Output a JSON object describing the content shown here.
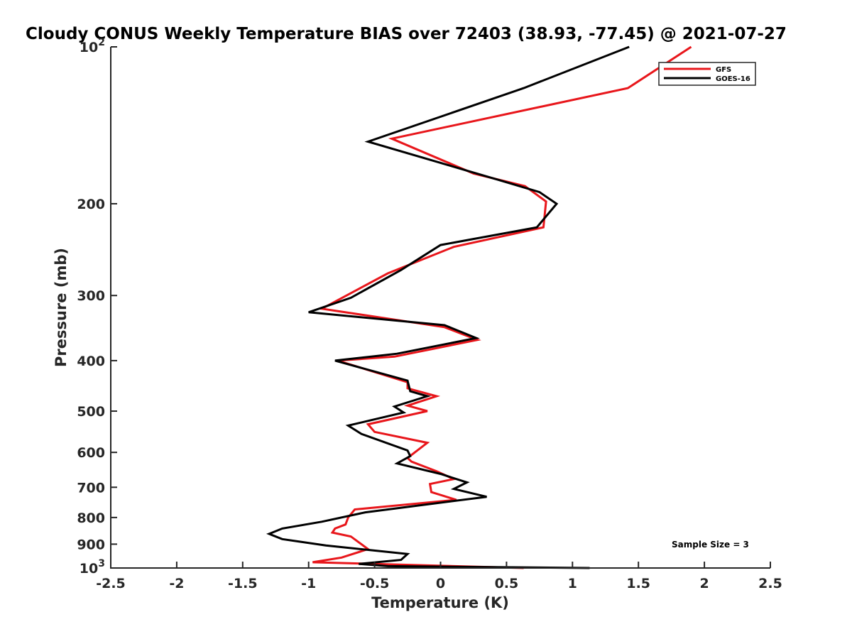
{
  "chart_data": {
    "type": "line",
    "title": "Cloudy CONUS Weekly Temperature BIAS over 72403 (38.93, -77.45) @ 2021-07-27",
    "xlabel": "Temperature (K)",
    "ylabel": "Pressure (mb)",
    "xlim": [
      -2.5,
      2.5
    ],
    "ylim": [
      100,
      1000
    ],
    "y_scale": "log",
    "y_reversed": true,
    "grid": false,
    "legend_position": "top-right",
    "x_ticks": [
      "-2.5",
      "-2",
      "-1.5",
      "-1",
      "-0.5",
      "0",
      "0.5",
      "1",
      "1.5",
      "2",
      "2.5"
    ],
    "y_ticks": [
      {
        "value": 100,
        "label": "10",
        "sup": "2"
      },
      {
        "value": 200,
        "label": "200",
        "sup": ""
      },
      {
        "value": 300,
        "label": "300",
        "sup": ""
      },
      {
        "value": 400,
        "label": "400",
        "sup": ""
      },
      {
        "value": 500,
        "label": "500",
        "sup": ""
      },
      {
        "value": 600,
        "label": "600",
        "sup": ""
      },
      {
        "value": 700,
        "label": "700",
        "sup": ""
      },
      {
        "value": 800,
        "label": "800",
        "sup": ""
      },
      {
        "value": 900,
        "label": "900",
        "sup": ""
      },
      {
        "value": 1000,
        "label": "10",
        "sup": "3"
      }
    ],
    "annotation": "Sample Size = 3",
    "series": [
      {
        "name": "GFS",
        "color": "#e8161b",
        "points": [
          [
            1.9,
            100
          ],
          [
            1.42,
            120
          ],
          [
            -0.37,
            150
          ],
          [
            0.25,
            175
          ],
          [
            0.64,
            185
          ],
          [
            0.8,
            198
          ],
          [
            0.78,
            222
          ],
          [
            0.1,
            242
          ],
          [
            -0.4,
            272
          ],
          [
            -0.9,
            318
          ],
          [
            0.03,
            345
          ],
          [
            0.28,
            365
          ],
          [
            -0.35,
            393
          ],
          [
            -0.78,
            400
          ],
          [
            -0.25,
            440
          ],
          [
            -0.25,
            452
          ],
          [
            -0.03,
            468
          ],
          [
            -0.25,
            488
          ],
          [
            -0.1,
            500
          ],
          [
            -0.55,
            530
          ],
          [
            -0.5,
            548
          ],
          [
            -0.1,
            575
          ],
          [
            -0.25,
            615
          ],
          [
            -0.22,
            625
          ],
          [
            -0.03,
            652
          ],
          [
            0.1,
            675
          ],
          [
            -0.08,
            690
          ],
          [
            -0.07,
            715
          ],
          [
            0.12,
            740
          ],
          [
            -0.65,
            772
          ],
          [
            -0.7,
            800
          ],
          [
            -0.72,
            825
          ],
          [
            -0.8,
            840
          ],
          [
            -0.82,
            855
          ],
          [
            -0.68,
            870
          ],
          [
            -0.55,
            920
          ],
          [
            -0.75,
            955
          ],
          [
            -0.97,
            975
          ],
          [
            0.63,
            1000
          ]
        ]
      },
      {
        "name": "GOES-16",
        "color": "#000000",
        "points": [
          [
            1.43,
            100
          ],
          [
            0.63,
            120
          ],
          [
            -0.55,
            152
          ],
          [
            0.44,
            180
          ],
          [
            0.75,
            190
          ],
          [
            0.88,
            200
          ],
          [
            0.73,
            222
          ],
          [
            0.0,
            240
          ],
          [
            -0.3,
            268
          ],
          [
            -0.68,
            303
          ],
          [
            -1.0,
            323
          ],
          [
            0.03,
            342
          ],
          [
            0.27,
            362
          ],
          [
            -0.33,
            388
          ],
          [
            -0.8,
            400
          ],
          [
            -0.25,
            437
          ],
          [
            -0.23,
            458
          ],
          [
            -0.1,
            468
          ],
          [
            -0.35,
            490
          ],
          [
            -0.28,
            503
          ],
          [
            -0.7,
            533
          ],
          [
            -0.6,
            553
          ],
          [
            -0.25,
            595
          ],
          [
            -0.23,
            610
          ],
          [
            -0.33,
            630
          ],
          [
            0.0,
            660
          ],
          [
            0.2,
            685
          ],
          [
            0.1,
            705
          ],
          [
            0.35,
            730
          ],
          [
            -0.57,
            782
          ],
          [
            -0.9,
            815
          ],
          [
            -1.2,
            840
          ],
          [
            -1.3,
            860
          ],
          [
            -1.2,
            880
          ],
          [
            -0.87,
            905
          ],
          [
            -0.25,
            940
          ],
          [
            -0.3,
            965
          ],
          [
            -0.62,
            982
          ],
          [
            -0.4,
            992
          ],
          [
            1.13,
            1000
          ]
        ]
      }
    ]
  }
}
